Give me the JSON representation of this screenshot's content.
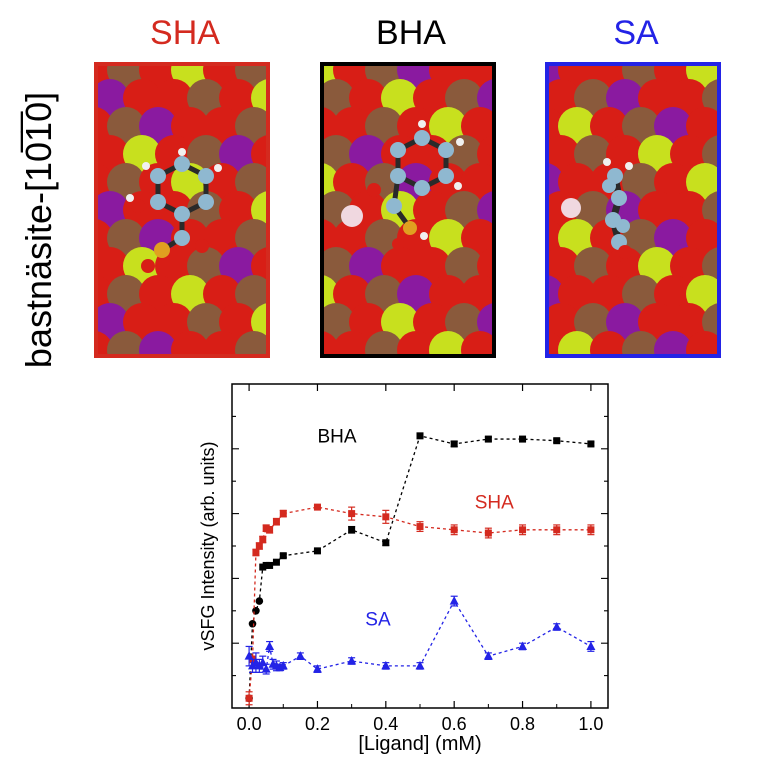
{
  "panels": [
    {
      "title": "SHA",
      "color": "#d42a1f"
    },
    {
      "title": "BHA",
      "color": "#000000"
    },
    {
      "title": "SA",
      "color": "#2323e6"
    }
  ],
  "side_label": "bastnäsite-[10̅1̅0]",
  "colors": {
    "red_atom": "#d81e16",
    "brown_atom": "#8a5a3c",
    "yellow_atom": "#c8e01e",
    "purple_atom": "#8a1aa0",
    "carbon": "#8fb8d0",
    "hydrogen": "#f0f0f0",
    "phosphorus": "#e0a020"
  },
  "chart_data": {
    "type": "scatter",
    "xlabel": "[Ligand] (mM)",
    "ylabel": "vSFG Intensity (arb. units)",
    "xlim": [
      -0.05,
      1.05
    ],
    "ylim": [
      0,
      10
    ],
    "xticks": [
      "0.0",
      "0.2",
      "0.4",
      "0.6",
      "0.8",
      "1.0"
    ],
    "series": [
      {
        "name": "BHA",
        "color": "#000000",
        "marker": "circle-square",
        "x": [
          0.0,
          0.01,
          0.02,
          0.03,
          0.04,
          0.05,
          0.06,
          0.08,
          0.1,
          0.2,
          0.3,
          0.4,
          0.5,
          0.6,
          0.7,
          0.8,
          0.9,
          1.0
        ],
        "y": [
          0.3,
          2.6,
          3.0,
          3.3,
          4.35,
          4.4,
          4.4,
          4.5,
          4.7,
          4.85,
          5.5,
          5.1,
          8.4,
          8.15,
          8.3,
          8.3,
          8.25,
          8.15
        ],
        "err": [
          0,
          0,
          0,
          0,
          0,
          0,
          0,
          0,
          0.05,
          0.05,
          0.1,
          0.08,
          0.05,
          0.08,
          0.06,
          0.05,
          0.05,
          0.06
        ]
      },
      {
        "name": "SHA",
        "color": "#d42a1f",
        "marker": "square",
        "x": [
          0.0,
          0.01,
          0.02,
          0.03,
          0.04,
          0.05,
          0.06,
          0.08,
          0.1,
          0.2,
          0.3,
          0.4,
          0.5,
          0.6,
          0.7,
          0.8,
          0.9,
          1.0
        ],
        "y": [
          0.3,
          1.5,
          4.8,
          5.0,
          5.2,
          5.55,
          5.5,
          5.75,
          6.0,
          6.2,
          6.0,
          5.9,
          5.6,
          5.5,
          5.4,
          5.5,
          5.5,
          5.5
        ],
        "err": [
          0.2,
          0.1,
          0.1,
          0.1,
          0.1,
          0.1,
          0.1,
          0.1,
          0.1,
          0.05,
          0.2,
          0.2,
          0.15,
          0.15,
          0.15,
          0.15,
          0.15,
          0.15
        ]
      },
      {
        "name": "SA",
        "color": "#2323e6",
        "marker": "triangle",
        "x": [
          0.0,
          0.01,
          0.02,
          0.03,
          0.04,
          0.05,
          0.06,
          0.07,
          0.08,
          0.09,
          0.1,
          0.15,
          0.2,
          0.3,
          0.4,
          0.5,
          0.6,
          0.7,
          0.8,
          0.9,
          1.0
        ],
        "y": [
          1.6,
          1.3,
          1.4,
          1.3,
          1.4,
          1.2,
          1.9,
          1.35,
          1.3,
          1.25,
          1.3,
          1.6,
          1.2,
          1.45,
          1.3,
          1.3,
          3.3,
          1.6,
          1.9,
          2.5,
          1.9
        ],
        "err": [
          0.3,
          0.2,
          0.3,
          0.2,
          0.2,
          0.15,
          0.15,
          0.15,
          0.15,
          0.1,
          0.1,
          0.1,
          0.1,
          0.1,
          0.1,
          0.1,
          0.15,
          0.1,
          0.1,
          0.1,
          0.15
        ]
      }
    ],
    "annotations": [
      {
        "text": "BHA",
        "x": 0.2,
        "y": 8.2,
        "color": "#000000"
      },
      {
        "text": "SHA",
        "x": 0.66,
        "y": 6.15,
        "color": "#d42a1f"
      },
      {
        "text": "SA",
        "x": 0.34,
        "y": 2.55,
        "color": "#2323e6"
      }
    ]
  }
}
